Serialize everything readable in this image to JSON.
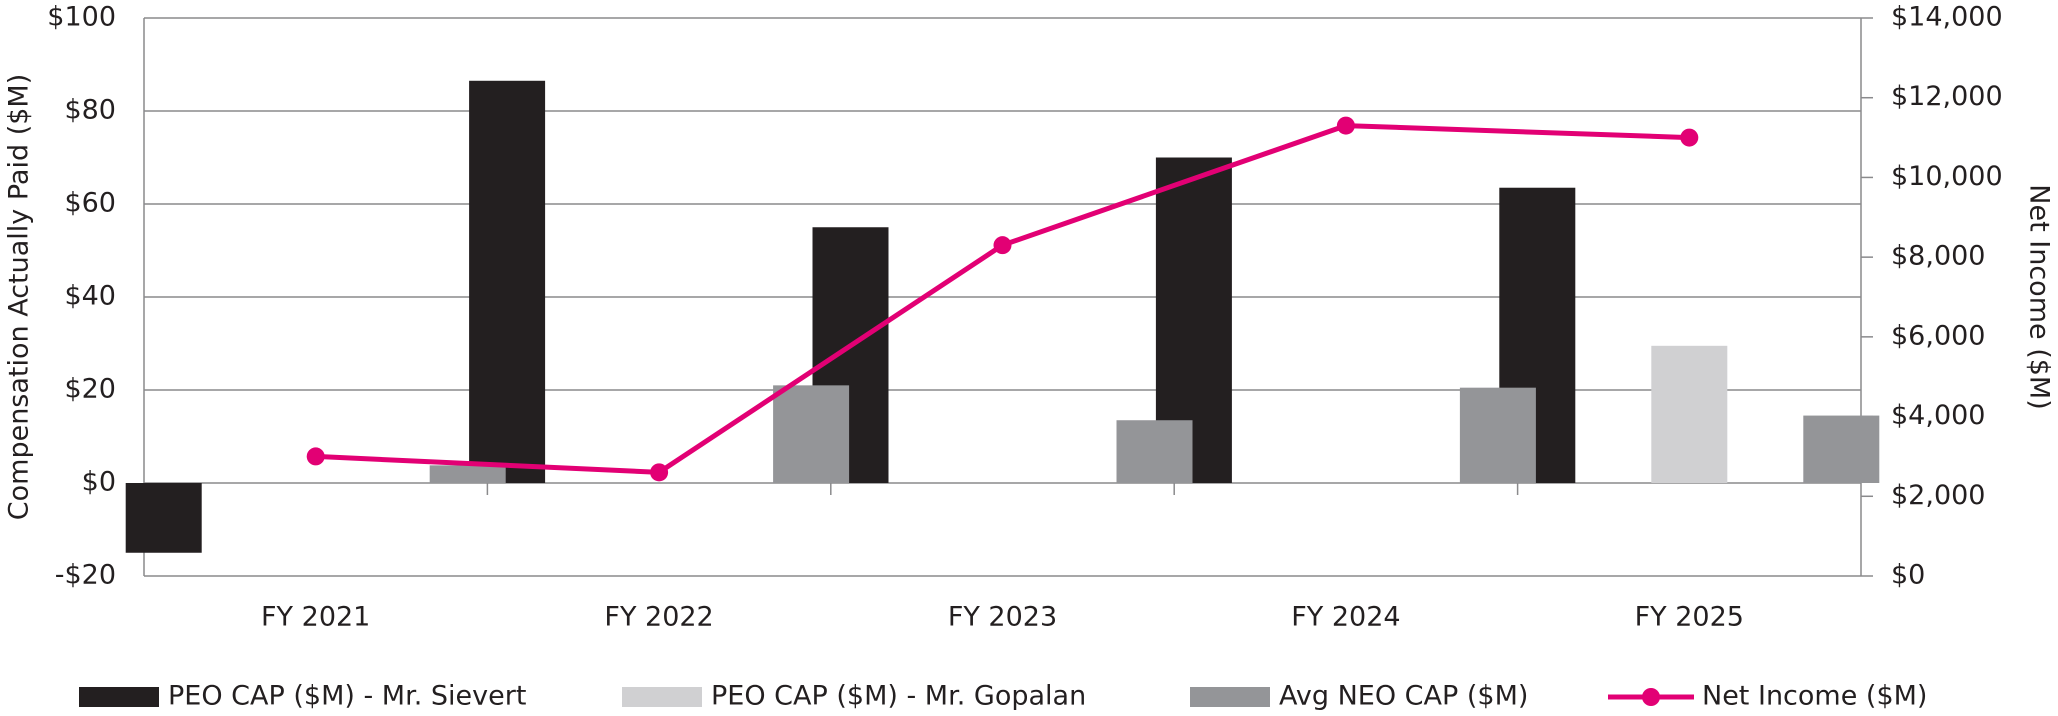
{
  "chart_data": {
    "type": "bar",
    "categories": [
      "FY 2021",
      "FY 2022",
      "FY 2023",
      "FY 2024",
      "FY 2025"
    ],
    "series": [
      {
        "name": "PEO CAP ($M) - Mr. Sievert",
        "color": "#231f20",
        "values": [
          -15,
          86.5,
          55,
          70,
          63.5
        ]
      },
      {
        "name": "PEO CAP ($M) - Mr. Gopalan",
        "color": "#d0d0d2",
        "values": [
          null,
          null,
          null,
          null,
          29.5
        ]
      },
      {
        "name": "Avg NEO CAP ($M)",
        "color": "#949598",
        "values": [
          3.8,
          21,
          13.5,
          20.5,
          14.5
        ]
      },
      {
        "name": "Net Income ($M)",
        "color": "#e20074",
        "type": "line",
        "axis": "y2",
        "values": [
          3000,
          2600,
          8300,
          11300,
          11000
        ]
      }
    ],
    "y_label": "Compensation Actually Paid ($M)",
    "y2_label": "Net Income ($M)",
    "ylim": [
      -20,
      100
    ],
    "yticks": [
      {
        "value": -20,
        "label": "-$20"
      },
      {
        "value": 0,
        "label": "$0"
      },
      {
        "value": 20,
        "label": "$20"
      },
      {
        "value": 40,
        "label": "$40"
      },
      {
        "value": 60,
        "label": "$60"
      },
      {
        "value": 80,
        "label": "$80"
      },
      {
        "value": 100,
        "label": "$100"
      }
    ],
    "y2lim": [
      0,
      14000
    ],
    "y2ticks": [
      {
        "value": 0,
        "label": "$0"
      },
      {
        "value": 2000,
        "label": "$2,000"
      },
      {
        "value": 4000,
        "label": "$4,000"
      },
      {
        "value": 6000,
        "label": "$6,000"
      },
      {
        "value": 8000,
        "label": "$8,000"
      },
      {
        "value": 10000,
        "label": "$10,000"
      },
      {
        "value": 12000,
        "label": "$12,000"
      },
      {
        "value": 14000,
        "label": "$14,000"
      }
    ],
    "grid": true
  }
}
